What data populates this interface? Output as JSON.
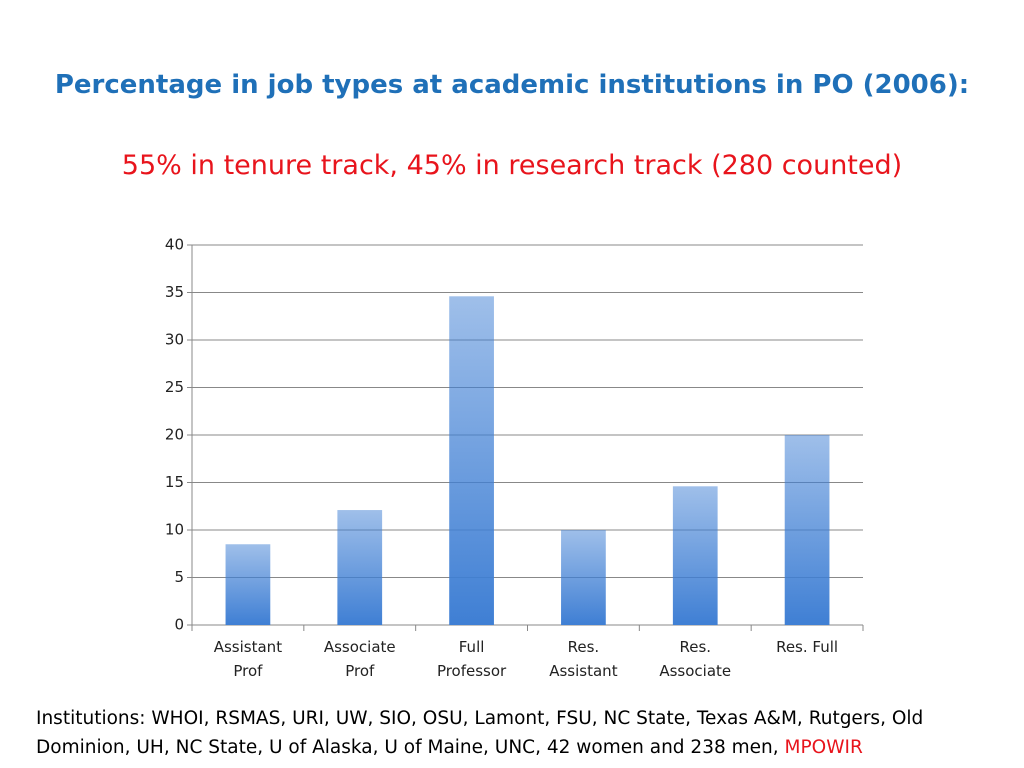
{
  "chart_data": {
    "type": "bar",
    "title": "Percentage in job types at academic institutions in PO (2006):",
    "subtitle": "55% in tenure track, 45% in research track (280 counted)",
    "categories": [
      "Assistant Prof",
      "Associate Prof",
      "Full Professor",
      "Res. Assistant",
      "Res. Associate",
      "Res. Full"
    ],
    "values": [
      8.5,
      12.1,
      34.6,
      10,
      14.6,
      20
    ],
    "color": "#3f7fd4",
    "ylim": [
      0,
      40
    ],
    "yticks": [
      0,
      5,
      10,
      15,
      20,
      25,
      30,
      35,
      40
    ],
    "grid": true
  },
  "footnote": {
    "text": "Institutions: WHOI, RSMAS, URI, UW, SIO, OSU, Lamont, FSU, NC State, Texas A&M, Rutgers, Old Dominion, UH, NC State, U of Alaska, U of Maine, UNC, 42 women and 238 men,",
    "highlight": "MPOWIR"
  }
}
